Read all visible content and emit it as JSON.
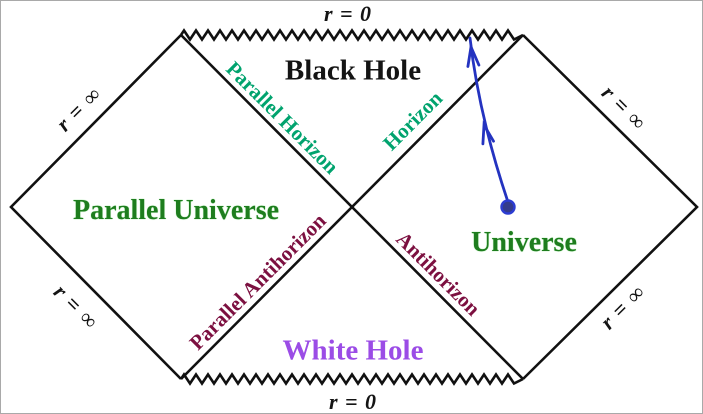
{
  "labels": {
    "singularity_top": "r = 0",
    "singularity_bottom": "r = 0",
    "infinity_top_left": "r = ∞",
    "infinity_bottom_left": "r = ∞",
    "infinity_top_right": "r = ∞",
    "infinity_bottom_right": "r = ∞",
    "black_hole": "Black Hole",
    "white_hole": "White Hole",
    "parallel_universe": "Parallel Universe",
    "universe": "Universe",
    "parallel_horizon": "Parallel Horizon",
    "horizon": "Horizon",
    "parallel_antihorizon": "Parallel Antihorizon",
    "antihorizon": "Antihorizon"
  },
  "colors": {
    "line_black": "#111111",
    "universe_green": "#1e7d1e",
    "horizon_teal": "#00a36e",
    "antihorizon_maroon": "#7c1040",
    "white_hole_purple": "#9b4ce6",
    "worldline_blue": "#2433c0"
  }
}
